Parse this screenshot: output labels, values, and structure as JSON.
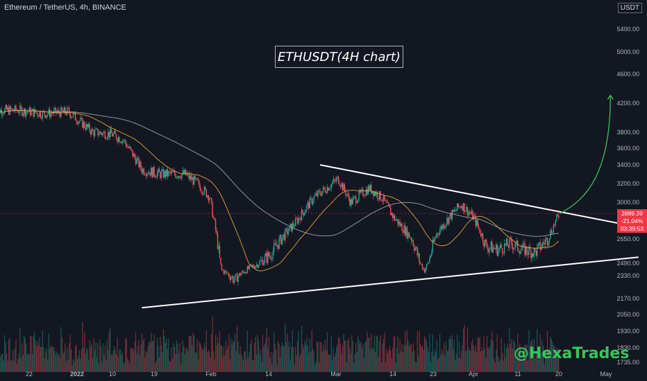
{
  "header": {
    "symbol": "Ethereum / TetherUS, 4h, BINANCE",
    "currency": "USDT"
  },
  "annotation_title": "ETHUSDT(4H chart)",
  "watermark": "@HexaTrades",
  "last_price": {
    "price": "2889.39",
    "change": "-21.04%",
    "countdown": "03:39:53",
    "color": "#f23645"
  },
  "colors": {
    "background": "#131722",
    "up_candle": "#26a69a",
    "down_candle": "#ef5350",
    "ma_fast": "#e8a33d",
    "ma_slow": "#b2b5be",
    "trendline": "#ffffff",
    "arrow": "#34c759"
  },
  "chart_data": {
    "type": "candlestick",
    "y_axis_ticks": [
      5400,
      5000,
      4600,
      4200,
      3800,
      3600,
      3400,
      3200,
      3000,
      2650,
      2490,
      2330,
      2170,
      2050,
      1930,
      1830,
      1735
    ],
    "y_axis_tick_labels": [
      "5400.00",
      "5000.00",
      "4600.00",
      "4200.00",
      "3800.00",
      "3600.00",
      "3400.00",
      "3200.00",
      "3000.00",
      "2650.00",
      "2490.00",
      "2330.00",
      "2170.00",
      "2050.00",
      "1930.00",
      "1830.00",
      "1735.00"
    ],
    "x_axis_labels": [
      "22",
      "2022",
      "10",
      "19",
      "Feb",
      "14",
      "Mar",
      "14",
      "23",
      "Apr",
      "11",
      "20",
      "May"
    ],
    "scale": "log",
    "price_path": [
      [
        "2021-12-20",
        4100
      ],
      [
        "2021-12-24",
        4050
      ],
      [
        "2021-12-28",
        4080
      ],
      [
        "2022-01-01",
        3800
      ],
      [
        "2022-01-04",
        3780
      ],
      [
        "2022-01-06",
        3700
      ],
      [
        "2022-01-09",
        3350
      ],
      [
        "2022-01-12",
        3300
      ],
      [
        "2022-01-16",
        3300
      ],
      [
        "2022-01-18",
        3200
      ],
      [
        "2022-01-20",
        3060
      ],
      [
        "2022-01-22",
        2400
      ],
      [
        "2022-01-24",
        2300
      ],
      [
        "2022-01-27",
        2450
      ],
      [
        "2022-01-30",
        2550
      ],
      [
        "2022-02-03",
        2800
      ],
      [
        "2022-02-06",
        3050
      ],
      [
        "2022-02-08",
        3150
      ],
      [
        "2022-02-10",
        3250
      ],
      [
        "2022-02-12",
        3000
      ],
      [
        "2022-02-15",
        3150
      ],
      [
        "2022-02-17",
        3050
      ],
      [
        "2022-02-19",
        2850
      ],
      [
        "2022-02-22",
        2650
      ],
      [
        "2022-02-24",
        2400
      ],
      [
        "2022-02-26",
        2700
      ],
      [
        "2022-02-28",
        2850
      ],
      [
        "2022-03-02",
        2980
      ],
      [
        "2022-03-04",
        2850
      ],
      [
        "2022-03-06",
        2600
      ],
      [
        "2022-03-08",
        2580
      ],
      [
        "2022-03-10",
        2620
      ],
      [
        "2022-03-12",
        2580
      ],
      [
        "2022-03-14",
        2560
      ],
      [
        "2022-03-16",
        2650
      ],
      [
        "2022-03-18",
        2889
      ]
    ],
    "trendline_upper": [
      [
        "2022-02-07",
        3400
      ],
      [
        "2022-03-28",
        2790
      ]
    ],
    "trendline_lower": [
      [
        "2022-01-09",
        2100
      ],
      [
        "2022-03-28",
        2520
      ]
    ],
    "projection_arrow": [
      [
        "2022-03-18",
        2889
      ],
      [
        "2022-03-24",
        4250
      ]
    ],
    "ylim": [
      1735,
      5550
    ],
    "xlim": [
      "2021-12-16",
      "2022-05-01"
    ]
  }
}
